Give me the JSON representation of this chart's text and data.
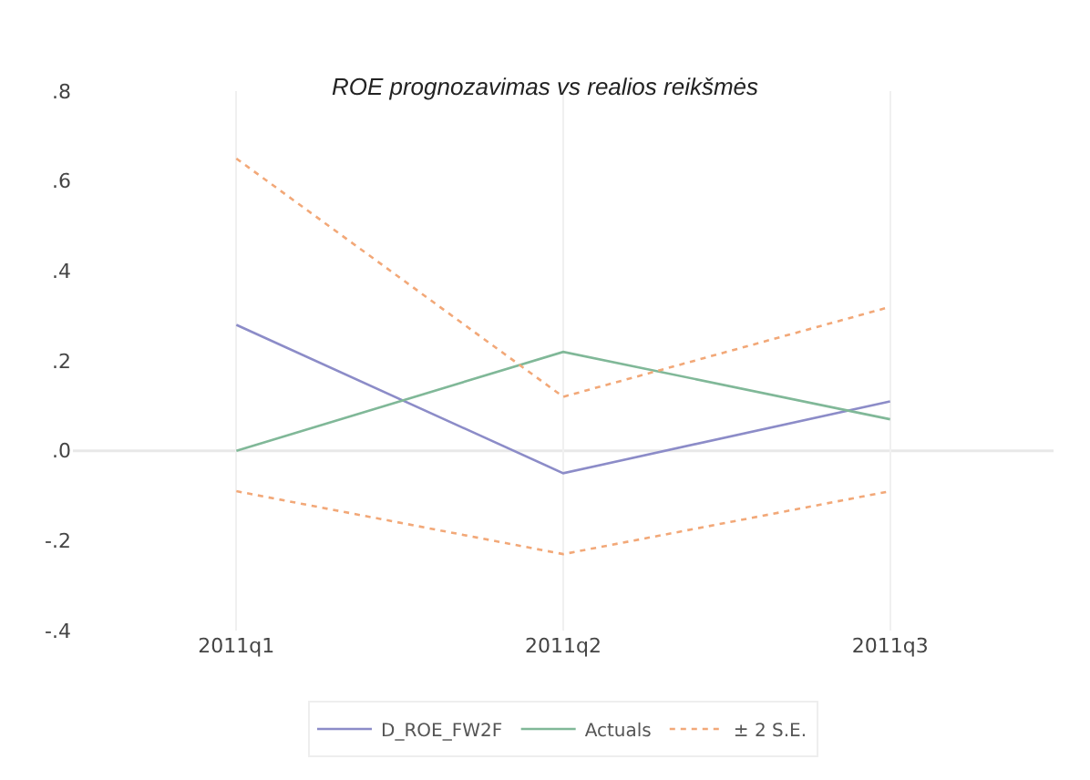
{
  "chart_data": {
    "type": "line",
    "title": "ROE prognozavimas vs realios reikšmės",
    "categories": [
      "2011q1",
      "2011q2",
      "2011q3"
    ],
    "series": [
      {
        "name": "D_ROE_FW2F",
        "color": "#8c8cc8",
        "values": [
          0.28,
          -0.05,
          0.11
        ]
      },
      {
        "name": "Actuals",
        "color": "#80b898",
        "values": [
          0.0,
          0.22,
          0.07
        ]
      },
      {
        "name": "± 2 S.E.",
        "color": "#f2a878",
        "values": [
          0.65,
          0.12,
          0.32
        ],
        "line_style": "dotted"
      },
      {
        "color": "#f2a878",
        "values": [
          -0.09,
          -0.23,
          -0.09
        ],
        "line_style": "dotted"
      }
    ],
    "ylim": [
      -0.4,
      0.8
    ],
    "yticks": [
      {
        "value": -0.4,
        "label": "-.4"
      },
      {
        "value": -0.2,
        "label": "-.2"
      },
      {
        "value": 0,
        "label": ".0"
      },
      {
        "value": 0.2,
        "label": ".2"
      },
      {
        "value": 0.4,
        "label": ".4"
      },
      {
        "value": 0.6,
        "label": ".6"
      },
      {
        "value": 0.8,
        "label": ".8"
      }
    ],
    "ref_lines": [
      {
        "axis": "y",
        "value": 0,
        "color": "#e8e8e8"
      }
    ],
    "grid": "x",
    "legend": "bottom",
    "line_style": "solid",
    "marker": "none"
  }
}
